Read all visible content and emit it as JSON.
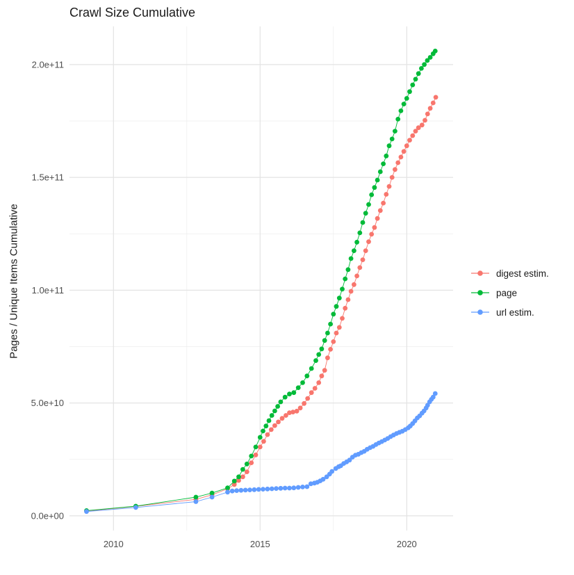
{
  "chart_data": {
    "type": "scatter",
    "title": "Crawl Size Cumulative",
    "xlabel": "",
    "ylabel": "Pages / Unique Items Cumulative",
    "legend_position": "right",
    "grid": true,
    "background": "#ffffff",
    "grid_color": "#e6e6e6",
    "xlim": [
      2008.5,
      2021.58
    ],
    "ylim": [
      -6500000000.0,
      216900000000.0
    ],
    "x_major_ticks": [
      2010,
      2015,
      2020
    ],
    "x_tick_labels": [
      "2010",
      "2015",
      "2020"
    ],
    "x_minor_ticks": [
      2012.5,
      2017.5
    ],
    "y_major_ticks": [
      0,
      50000000000.0,
      100000000000.0,
      150000000000.0,
      200000000000.0
    ],
    "y_tick_labels": [
      "0.0e+00",
      "5.0e+10",
      "1.0e+11",
      "1.5e+11",
      "2.0e+11"
    ],
    "y_minor_ticks": [
      25000000000.0,
      75000000000.0,
      125000000000.0,
      175000000000.0
    ],
    "series": [
      {
        "name": "digest estim.",
        "color": "#F8766D",
        "points": [
          [
            2009.08,
            2100000000.0
          ],
          [
            2010.76,
            4200000000.0
          ],
          [
            2012.81,
            7300000000.0
          ],
          [
            2013.36,
            9300000000.0
          ],
          [
            2013.89,
            12000000000.0
          ],
          [
            2014.12,
            13900000000.0
          ],
          [
            2014.27,
            15700000000.0
          ],
          [
            2014.41,
            17300000000.0
          ],
          [
            2014.55,
            19500000000.0
          ],
          [
            2014.7,
            23500000000.0
          ],
          [
            2014.85,
            27000000000.0
          ],
          [
            2015.0,
            30500000000.0
          ],
          [
            2015.12,
            33000000000.0
          ],
          [
            2015.25,
            36000000000.0
          ],
          [
            2015.38,
            38200000000.0
          ],
          [
            2015.5,
            40000000000.0
          ],
          [
            2015.62,
            41600000000.0
          ],
          [
            2015.75,
            43200000000.0
          ],
          [
            2015.88,
            44500000000.0
          ],
          [
            2016.0,
            45700000000.0
          ],
          [
            2016.12,
            46000000000.0
          ],
          [
            2016.25,
            46400000000.0
          ],
          [
            2016.37,
            47800000000.0
          ],
          [
            2016.5,
            49800000000.0
          ],
          [
            2016.62,
            52000000000.0
          ],
          [
            2016.75,
            54600000000.0
          ],
          [
            2016.87,
            56500000000.0
          ],
          [
            2017.0,
            59000000000.0
          ],
          [
            2017.1,
            62000000000.0
          ],
          [
            2017.2,
            64500000000.0
          ],
          [
            2017.3,
            70000000000.0
          ],
          [
            2017.4,
            73800000000.0
          ],
          [
            2017.5,
            77200000000.0
          ],
          [
            2017.6,
            81000000000.0
          ],
          [
            2017.7,
            83500000000.0
          ],
          [
            2017.8,
            87500000000.0
          ],
          [
            2017.9,
            92000000000.0
          ],
          [
            2018.0,
            95800000000.0
          ],
          [
            2018.1,
            99500000000.0
          ],
          [
            2018.2,
            102500000000.0
          ],
          [
            2018.3,
            106300000000.0
          ],
          [
            2018.4,
            110000000000.0
          ],
          [
            2018.5,
            113500000000.0
          ],
          [
            2018.6,
            117500000000.0
          ],
          [
            2018.7,
            121500000000.0
          ],
          [
            2018.8,
            124800000000.0
          ],
          [
            2018.9,
            127800000000.0
          ],
          [
            2019.0,
            131800000000.0
          ],
          [
            2019.1,
            135300000000.0
          ],
          [
            2019.2,
            138600000000.0
          ],
          [
            2019.3,
            142500000000.0
          ],
          [
            2019.4,
            146000000000.0
          ],
          [
            2019.5,
            150000000000.0
          ],
          [
            2019.6,
            153500000000.0
          ],
          [
            2019.7,
            156500000000.0
          ],
          [
            2019.8,
            159000000000.0
          ],
          [
            2019.9,
            161500000000.0
          ],
          [
            2020.0,
            164000000000.0
          ],
          [
            2020.1,
            166500000000.0
          ],
          [
            2020.2,
            168500000000.0
          ],
          [
            2020.3,
            170500000000.0
          ],
          [
            2020.4,
            172000000000.0
          ],
          [
            2020.52,
            173200000000.0
          ],
          [
            2020.62,
            175300000000.0
          ],
          [
            2020.71,
            178100000000.0
          ],
          [
            2020.8,
            180600000000.0
          ],
          [
            2020.9,
            183000000000.0
          ],
          [
            2020.99,
            185500000000.0
          ]
        ]
      },
      {
        "name": "page",
        "color": "#00BA38",
        "points": [
          [
            2009.08,
            2300000000.0
          ],
          [
            2010.76,
            4300000000.0
          ],
          [
            2012.81,
            8300000000.0
          ],
          [
            2013.36,
            10100000000.0
          ],
          [
            2013.89,
            12400000000.0
          ],
          [
            2014.12,
            15400000000.0
          ],
          [
            2014.27,
            17300000000.0
          ],
          [
            2014.41,
            20600000000.0
          ],
          [
            2014.55,
            23000000000.0
          ],
          [
            2014.7,
            26500000000.0
          ],
          [
            2014.85,
            30500000000.0
          ],
          [
            2015.0,
            34800000000.0
          ],
          [
            2015.1,
            37600000000.0
          ],
          [
            2015.2,
            39800000000.0
          ],
          [
            2015.3,
            42200000000.0
          ],
          [
            2015.4,
            44500000000.0
          ],
          [
            2015.5,
            46500000000.0
          ],
          [
            2015.6,
            48500000000.0
          ],
          [
            2015.7,
            50500000000.0
          ],
          [
            2015.85,
            52600000000.0
          ],
          [
            2016.0,
            54000000000.0
          ],
          [
            2016.15,
            54600000000.0
          ],
          [
            2016.3,
            56800000000.0
          ],
          [
            2016.45,
            59000000000.0
          ],
          [
            2016.6,
            62000000000.0
          ],
          [
            2016.75,
            65300000000.0
          ],
          [
            2016.9,
            68800000000.0
          ],
          [
            2017.0,
            71500000000.0
          ],
          [
            2017.1,
            74000000000.0
          ],
          [
            2017.2,
            77700000000.0
          ],
          [
            2017.3,
            81000000000.0
          ],
          [
            2017.4,
            85000000000.0
          ],
          [
            2017.5,
            89400000000.0
          ],
          [
            2017.6,
            92800000000.0
          ],
          [
            2017.7,
            96500000000.0
          ],
          [
            2017.8,
            100500000000.0
          ],
          [
            2017.9,
            105000000000.0
          ],
          [
            2018.0,
            109100000000.0
          ],
          [
            2018.1,
            114000000000.0
          ],
          [
            2018.2,
            117500000000.0
          ],
          [
            2018.3,
            121300000000.0
          ],
          [
            2018.4,
            125400000000.0
          ],
          [
            2018.5,
            130000000000.0
          ],
          [
            2018.6,
            134100000000.0
          ],
          [
            2018.7,
            138000000000.0
          ],
          [
            2018.8,
            142300000000.0
          ],
          [
            2018.9,
            145500000000.0
          ],
          [
            2019.0,
            148800000000.0
          ],
          [
            2019.1,
            152500000000.0
          ],
          [
            2019.2,
            156000000000.0
          ],
          [
            2019.3,
            159500000000.0
          ],
          [
            2019.4,
            164000000000.0
          ],
          [
            2019.5,
            167000000000.0
          ],
          [
            2019.6,
            170500000000.0
          ],
          [
            2019.7,
            175800000000.0
          ],
          [
            2019.8,
            179500000000.0
          ],
          [
            2019.9,
            182500000000.0
          ],
          [
            2020.0,
            185000000000.0
          ],
          [
            2020.1,
            188000000000.0
          ],
          [
            2020.2,
            191000000000.0
          ],
          [
            2020.3,
            193500000000.0
          ],
          [
            2020.4,
            196000000000.0
          ],
          [
            2020.5,
            198300000000.0
          ],
          [
            2020.6,
            200000000000.0
          ],
          [
            2020.7,
            201800000000.0
          ],
          [
            2020.8,
            203200000000.0
          ],
          [
            2020.9,
            204800000000.0
          ],
          [
            2020.97,
            206000000000.0
          ]
        ]
      },
      {
        "name": "url estim.",
        "color": "#619CFF",
        "points": [
          [
            2009.08,
            1900000000.0
          ],
          [
            2010.76,
            3700000000.0
          ],
          [
            2012.81,
            6300000000.0
          ],
          [
            2013.36,
            8300000000.0
          ],
          [
            2013.89,
            10500000000.0
          ],
          [
            2014.05,
            11000000000.0
          ],
          [
            2014.2,
            11200000000.0
          ],
          [
            2014.35,
            11300000000.0
          ],
          [
            2014.5,
            11400000000.0
          ],
          [
            2014.65,
            11500000000.0
          ],
          [
            2014.8,
            11600000000.0
          ],
          [
            2014.95,
            11700000000.0
          ],
          [
            2015.1,
            11800000000.0
          ],
          [
            2015.25,
            11900000000.0
          ],
          [
            2015.4,
            12000000000.0
          ],
          [
            2015.55,
            12100000000.0
          ],
          [
            2015.7,
            12200000000.0
          ],
          [
            2015.85,
            12300000000.0
          ],
          [
            2016.0,
            12300000000.0
          ],
          [
            2016.15,
            12400000000.0
          ],
          [
            2016.3,
            12600000000.0
          ],
          [
            2016.45,
            12800000000.0
          ],
          [
            2016.6,
            12900000000.0
          ],
          [
            2016.73,
            14200000000.0
          ],
          [
            2016.85,
            14500000000.0
          ],
          [
            2016.95,
            14900000000.0
          ],
          [
            2017.05,
            15500000000.0
          ],
          [
            2017.15,
            16200000000.0
          ],
          [
            2017.27,
            17300000000.0
          ],
          [
            2017.37,
            18500000000.0
          ],
          [
            2017.45,
            19700000000.0
          ],
          [
            2017.58,
            21000000000.0
          ],
          [
            2017.68,
            21800000000.0
          ],
          [
            2017.75,
            22200000000.0
          ],
          [
            2017.85,
            23200000000.0
          ],
          [
            2017.95,
            23900000000.0
          ],
          [
            2018.05,
            24700000000.0
          ],
          [
            2018.15,
            26000000000.0
          ],
          [
            2018.25,
            26900000000.0
          ],
          [
            2018.35,
            27300000000.0
          ],
          [
            2018.45,
            28000000000.0
          ],
          [
            2018.55,
            28600000000.0
          ],
          [
            2018.65,
            29500000000.0
          ],
          [
            2018.75,
            30200000000.0
          ],
          [
            2018.85,
            30800000000.0
          ],
          [
            2018.95,
            31600000000.0
          ],
          [
            2019.05,
            32300000000.0
          ],
          [
            2019.15,
            32900000000.0
          ],
          [
            2019.25,
            33600000000.0
          ],
          [
            2019.35,
            34300000000.0
          ],
          [
            2019.45,
            35100000000.0
          ],
          [
            2019.55,
            35800000000.0
          ],
          [
            2019.65,
            36500000000.0
          ],
          [
            2019.75,
            37000000000.0
          ],
          [
            2019.85,
            37500000000.0
          ],
          [
            2019.95,
            38200000000.0
          ],
          [
            2020.05,
            39000000000.0
          ],
          [
            2020.12,
            39800000000.0
          ],
          [
            2020.2,
            40900000000.0
          ],
          [
            2020.28,
            42100000000.0
          ],
          [
            2020.36,
            43400000000.0
          ],
          [
            2020.44,
            44300000000.0
          ],
          [
            2020.52,
            45500000000.0
          ],
          [
            2020.59,
            46500000000.0
          ],
          [
            2020.66,
            47800000000.0
          ],
          [
            2020.71,
            49000000000.0
          ],
          [
            2020.78,
            50500000000.0
          ],
          [
            2020.84,
            51600000000.0
          ],
          [
            2020.9,
            52600000000.0
          ],
          [
            2020.97,
            54200000000.0
          ]
        ]
      }
    ]
  }
}
